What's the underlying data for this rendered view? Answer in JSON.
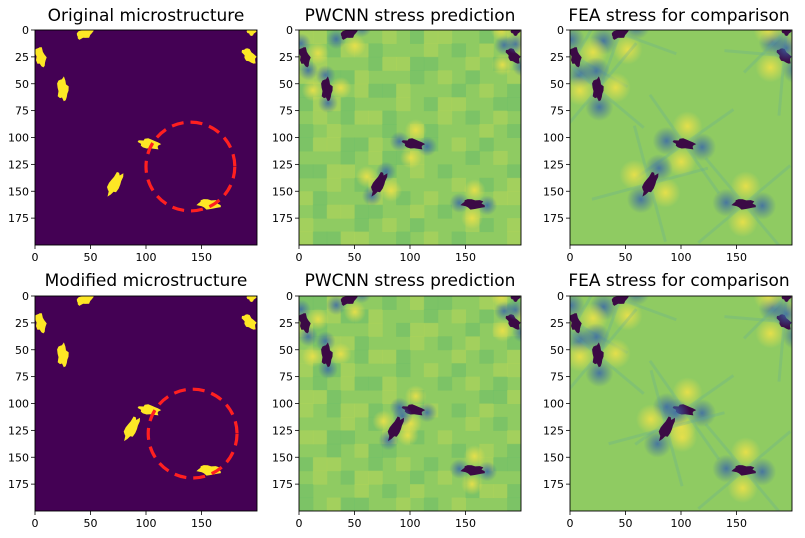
{
  "colors": {
    "microstructure_background": "#440154",
    "inclusion": "#fde725",
    "stress_field": "#8fcb62",
    "stress_low": "#3b68a8",
    "stress_high": "#e8e04a",
    "inclusion_in_stress_map": "#3b0a45",
    "highlight_circle": "#ff2020"
  },
  "panels": [
    {
      "title": "Original microstructure",
      "type": "microstructure",
      "row": "original",
      "highlight": {
        "cx": 140,
        "cy": 127,
        "r": 40
      }
    },
    {
      "title": "PWCNN stress prediction",
      "type": "stress-prediction",
      "row": "original"
    },
    {
      "title": "FEA stress for comparison",
      "type": "stress-fea",
      "row": "original"
    },
    {
      "title": "Modified microstructure",
      "type": "microstructure",
      "row": "modified",
      "highlight": {
        "cx": 142,
        "cy": 128,
        "r": 40
      }
    },
    {
      "title": "PWCNN stress prediction",
      "type": "stress-prediction",
      "row": "modified"
    },
    {
      "title": "FEA stress for comparison",
      "type": "stress-fea",
      "row": "modified"
    }
  ],
  "axes": {
    "xlim": [
      0,
      200
    ],
    "ylim": [
      200,
      0
    ],
    "x_ticks": [
      "0",
      "50",
      "100",
      "150"
    ],
    "y_ticks": [
      "0",
      "25",
      "50",
      "75",
      "100",
      "125",
      "150",
      "175"
    ],
    "x_tick_values": [
      0,
      50,
      100,
      150
    ],
    "y_tick_values": [
      0,
      25,
      50,
      75,
      100,
      125,
      150,
      175
    ]
  },
  "inclusions": {
    "original": [
      {
        "x": 45,
        "y": 3,
        "len": 16,
        "wid": 9,
        "angle": -25
      },
      {
        "x": 5,
        "y": 25,
        "len": 18,
        "wid": 9,
        "angle": 75
      },
      {
        "x": 25,
        "y": 55,
        "len": 20,
        "wid": 10,
        "angle": 85
      },
      {
        "x": 103,
        "y": 106,
        "len": 19,
        "wid": 9,
        "angle": 10
      },
      {
        "x": 72,
        "y": 143,
        "len": 22,
        "wid": 10,
        "angle": -60
      },
      {
        "x": 157,
        "y": 162,
        "len": 20,
        "wid": 9,
        "angle": 5
      },
      {
        "x": 193,
        "y": 24,
        "len": 16,
        "wid": 9,
        "angle": 50
      },
      {
        "x": 195,
        "y": 0,
        "len": 10,
        "wid": 8,
        "angle": 90
      }
    ],
    "modified": [
      {
        "x": 45,
        "y": 3,
        "len": 16,
        "wid": 9,
        "angle": -25
      },
      {
        "x": 5,
        "y": 25,
        "len": 18,
        "wid": 9,
        "angle": 75
      },
      {
        "x": 25,
        "y": 55,
        "len": 20,
        "wid": 10,
        "angle": 85
      },
      {
        "x": 103,
        "y": 106,
        "len": 19,
        "wid": 9,
        "angle": 10
      },
      {
        "x": 87,
        "y": 123,
        "len": 22,
        "wid": 10,
        "angle": -60
      },
      {
        "x": 157,
        "y": 162,
        "len": 20,
        "wid": 9,
        "angle": 5
      },
      {
        "x": 193,
        "y": 24,
        "len": 16,
        "wid": 9,
        "angle": 50
      },
      {
        "x": 195,
        "y": 0,
        "len": 10,
        "wid": 8,
        "angle": 90
      }
    ]
  }
}
